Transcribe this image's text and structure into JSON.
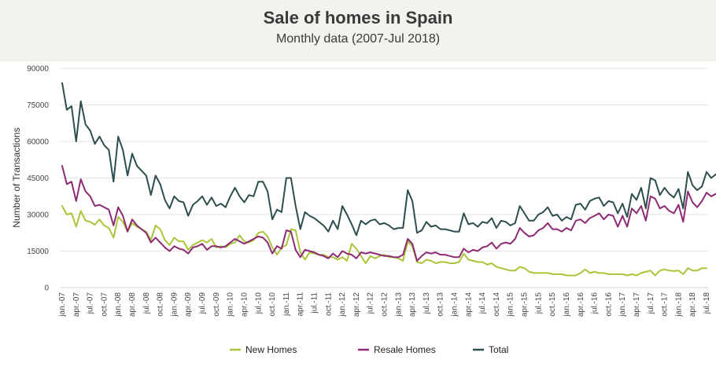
{
  "chart_data": {
    "type": "line",
    "title": "Sale of homes in Spain",
    "subtitle": "Monthly data (2007-Jul 2018)",
    "ylabel": "Number of Transactions",
    "xlabel": "",
    "ylim": [
      0,
      90000
    ],
    "yticks": [
      0,
      15000,
      30000,
      45000,
      60000,
      75000,
      90000
    ],
    "ytick_labels": [
      "0",
      "15000",
      "30000",
      "45000",
      "60000",
      "75000",
      "90000"
    ],
    "xtick_labels": [
      "jan.-07",
      "apr.-07",
      "jul.-07",
      "oct.-07",
      "jan.-08",
      "apr.-08",
      "jul.-08",
      "oct.-08",
      "jan.-09",
      "apr.-09",
      "jul.-09",
      "oct.-09",
      "jan.-10",
      "apr.-10",
      "jul.-10",
      "oct.-10",
      "jan.-11",
      "apr.-11",
      "jul.-11",
      "oct.-11",
      "jan.-12",
      "apr.-12",
      "jul.-12",
      "oct.-12",
      "jan.-13",
      "apr.-13",
      "jul.-13",
      "oct.-13",
      "jan.-14",
      "apr.-14",
      "jul.-14",
      "oct.-14",
      "jan.-15",
      "apr.-15",
      "jul.-15",
      "oct.-15",
      "jan.-16",
      "apr.-16",
      "jul.-16",
      "oct.-16",
      "jan.-17",
      "apr.-17",
      "jul.-17",
      "oct.-17",
      "jan.-18",
      "apr.-18",
      "jul.-18"
    ],
    "months": 139,
    "grid": "horizontal",
    "legend_position": "bottom",
    "series": [
      {
        "name": "New Homes",
        "color": "#a9c53a",
        "values": [
          33500,
          30000,
          30500,
          25000,
          31500,
          27500,
          27000,
          25800,
          28000,
          25500,
          24500,
          20500,
          29000,
          27000,
          23000,
          26500,
          25000,
          24000,
          23000,
          19500,
          25500,
          24000,
          19500,
          17500,
          20500,
          19000,
          19000,
          15500,
          17500,
          18500,
          19500,
          18500,
          20000,
          16500,
          17000,
          16500,
          18000,
          18500,
          21500,
          19000,
          18500,
          19500,
          22500,
          23000,
          21000,
          16500,
          13500,
          16500,
          17500,
          24000,
          23500,
          14500,
          11500,
          14500,
          14000,
          13500,
          13500,
          12500,
          12500,
          11500,
          12500,
          11000,
          18000,
          16000,
          13000,
          10000,
          13000,
          12000,
          13000,
          13500,
          12500,
          12500,
          12000,
          11000,
          19000,
          17000,
          10500,
          10000,
          11500,
          11000,
          10000,
          10500,
          10500,
          10000,
          10000,
          10500,
          14000,
          11500,
          11000,
          10500,
          10500,
          9500,
          10000,
          8500,
          8000,
          7500,
          7000,
          7000,
          8500,
          8000,
          6500,
          6000,
          6000,
          6000,
          6000,
          5500,
          5500,
          5500,
          5000,
          5000,
          5000,
          6000,
          7500,
          6000,
          6500,
          6000,
          6000,
          5500,
          5500,
          5500,
          5500,
          5000,
          5500,
          5000,
          6000,
          6500,
          7000,
          5000,
          7000,
          7500,
          7000,
          6800,
          7000,
          5500,
          8000,
          7000,
          7000,
          8000,
          8000
        ]
      },
      {
        "name": "Resale Homes",
        "color": "#8e2a73",
        "values": [
          50000,
          42500,
          43500,
          35500,
          44500,
          39500,
          37500,
          33500,
          34000,
          33000,
          32000,
          25500,
          33000,
          29500,
          23000,
          28000,
          25500,
          24000,
          22500,
          18500,
          20500,
          18500,
          16500,
          15000,
          17000,
          16000,
          15500,
          14000,
          16500,
          17000,
          18000,
          15500,
          17000,
          17000,
          16500,
          17000,
          18500,
          20000,
          19000,
          18000,
          19000,
          20000,
          21000,
          20500,
          18500,
          14000,
          17000,
          16000,
          23500,
          23000,
          15500,
          12500,
          15500,
          15000,
          14500,
          13500,
          13000,
          12000,
          14000,
          12500,
          15000,
          14000,
          13500,
          12000,
          14500,
          14000,
          14500,
          14000,
          13500,
          13000,
          13000,
          12500,
          12500,
          13500,
          20000,
          18000,
          11000,
          13000,
          14500,
          14000,
          14500,
          13500,
          13500,
          13000,
          12500,
          12500,
          16000,
          14500,
          15500,
          15000,
          16500,
          17000,
          18500,
          16000,
          18000,
          18500,
          18000,
          20000,
          24500,
          22500,
          21000,
          21500,
          23500,
          24500,
          26500,
          24000,
          24000,
          23000,
          24500,
          23500,
          27500,
          28000,
          26500,
          28500,
          29500,
          30500,
          28000,
          30000,
          29500,
          25000,
          29500,
          25000,
          32500,
          30500,
          33500,
          27500,
          37500,
          36500,
          32500,
          33500,
          31500,
          30500,
          34000,
          27000,
          39500,
          35000,
          33000,
          35500,
          39000,
          37500,
          38500
        ]
      },
      {
        "name": "Total",
        "color": "#2d4e4d",
        "values": [
          84000,
          73000,
          74500,
          60000,
          76500,
          67000,
          64500,
          59000,
          62000,
          58500,
          56500,
          43500,
          62000,
          56500,
          46000,
          55000,
          50000,
          48000,
          46000,
          38000,
          46000,
          42500,
          36000,
          32500,
          37500,
          35500,
          35000,
          29500,
          34000,
          35500,
          37500,
          34000,
          37000,
          33500,
          34500,
          33000,
          37500,
          41000,
          37500,
          35000,
          38000,
          37500,
          43500,
          43500,
          39500,
          28000,
          32000,
          31000,
          45000,
          45000,
          33500,
          24000,
          31000,
          29500,
          28500,
          27000,
          25500,
          23000,
          27500,
          24000,
          33500,
          30000,
          26000,
          21500,
          27500,
          26000,
          27500,
          28000,
          26000,
          26500,
          25500,
          24000,
          24500,
          24500,
          40000,
          35500,
          22500,
          23500,
          27000,
          25000,
          25500,
          24000,
          24000,
          23500,
          23000,
          23000,
          30500,
          26000,
          26500,
          25000,
          27000,
          26500,
          28500,
          24500,
          27500,
          27000,
          25500,
          26500,
          33500,
          30500,
          27500,
          27500,
          30000,
          31000,
          33000,
          29500,
          30000,
          27500,
          29000,
          28000,
          34000,
          34500,
          32000,
          35500,
          36500,
          37000,
          33500,
          35500,
          35000,
          30500,
          34500,
          29000,
          38500,
          36000,
          41000,
          32500,
          45000,
          44000,
          38000,
          41000,
          38500,
          37000,
          40500,
          32500,
          47500,
          42000,
          40000,
          41500,
          47500,
          45000,
          46500
        ]
      }
    ]
  }
}
